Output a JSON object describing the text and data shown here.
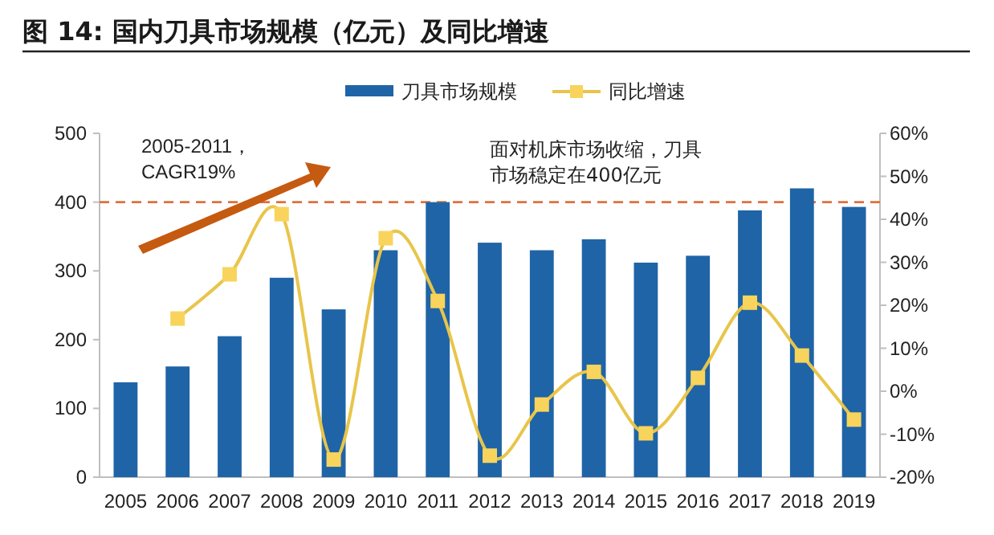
{
  "chart_data": {
    "type": "bar",
    "title": "图 14: 国内刀具市场规模（亿元）及同比增速",
    "categories": [
      "2005",
      "2006",
      "2007",
      "2008",
      "2009",
      "2010",
      "2011",
      "2012",
      "2013",
      "2014",
      "2015",
      "2016",
      "2017",
      "2018",
      "2019"
    ],
    "series": [
      {
        "name": "刀具市场规模",
        "color": "#1f64a6",
        "values": [
          138,
          161,
          205,
          290,
          244,
          330,
          400,
          341,
          330,
          346,
          312,
          322,
          388,
          420,
          393
        ]
      },
      {
        "name": "同比增速",
        "type": "line",
        "axis": "y2",
        "color": "#e8c54a",
        "marker": "square",
        "values": [
          null,
          16.9,
          27.2,
          41.2,
          -15.9,
          35.6,
          21,
          -15,
          -3.1,
          4.5,
          -9.8,
          3.1,
          20.6,
          8.3,
          -6.6
        ]
      }
    ],
    "ylim": [
      0,
      500
    ],
    "yticks": [
      0,
      100,
      200,
      300,
      400,
      500
    ],
    "y2lim": [
      -20,
      60
    ],
    "y2ticks": [
      {
        "value": -20,
        "label": "-20%"
      },
      {
        "value": -10,
        "label": "-10%"
      },
      {
        "value": 0,
        "label": "0%"
      },
      {
        "value": 10,
        "label": "10%"
      },
      {
        "value": 20,
        "label": "20%"
      },
      {
        "value": 30,
        "label": "30%"
      },
      {
        "value": 40,
        "label": "40%"
      },
      {
        "value": 50,
        "label": "50%"
      },
      {
        "value": 60,
        "label": "60%"
      }
    ],
    "ref_lines": [
      {
        "axis": "y",
        "value": 400,
        "color": "#e0703a",
        "line_style": "dashed"
      }
    ],
    "annotations": [
      "2005-2011，",
      "CAGR19%",
      "面对机床市场收缩，刀具",
      "市场稳定在400亿元"
    ],
    "legend": "top",
    "grid": false
  }
}
